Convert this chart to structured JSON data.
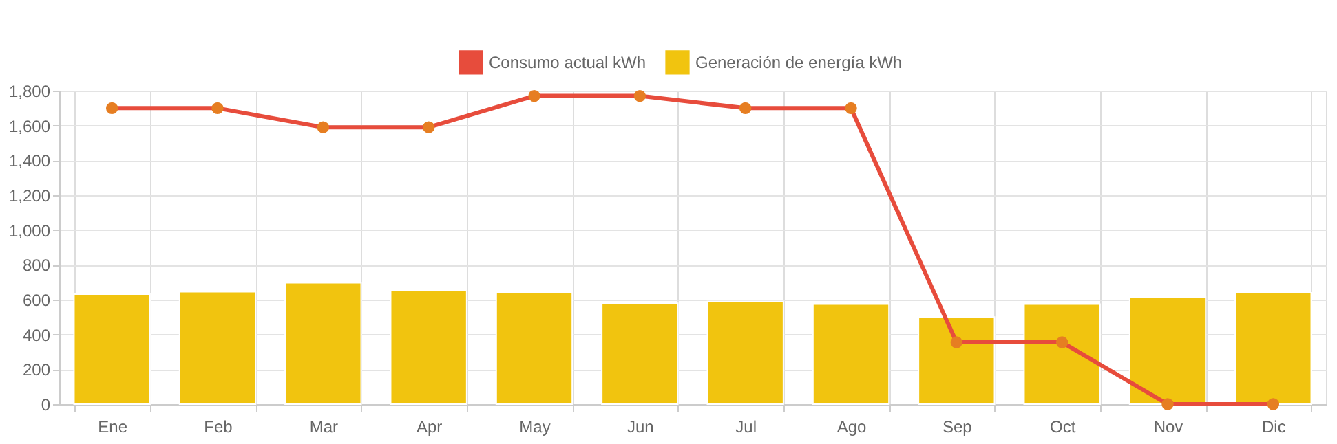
{
  "chart_data": {
    "type": "bar",
    "categories": [
      "Ene",
      "Feb",
      "Mar",
      "Apr",
      "May",
      "Jun",
      "Jul",
      "Ago",
      "Sep",
      "Oct",
      "Nov",
      "Dic"
    ],
    "series": [
      {
        "name": "Consumo actual kWh",
        "type": "line",
        "color": "#e74c3c",
        "values": [
          1700,
          1700,
          1590,
          1590,
          1770,
          1770,
          1700,
          1700,
          355,
          355,
          0,
          0
        ]
      },
      {
        "name": "Generación de energía kWh",
        "color": "#f1c40f",
        "values": [
          632,
          645,
          697,
          655,
          639,
          579,
          589,
          574,
          500,
          574,
          616,
          639
        ]
      }
    ],
    "ylim": [
      0,
      1800
    ],
    "yticks": [
      0,
      200,
      400,
      600,
      800,
      {
        "value": 1000,
        "label": "1,000"
      },
      {
        "value": 1200,
        "label": "1,200"
      },
      {
        "value": 1400,
        "label": "1,400"
      },
      {
        "value": 1600,
        "label": "1,600"
      },
      {
        "value": 1800,
        "label": "1,800"
      }
    ],
    "grid": true,
    "legend": "top",
    "marker": "circle",
    "line_style": "solid"
  }
}
